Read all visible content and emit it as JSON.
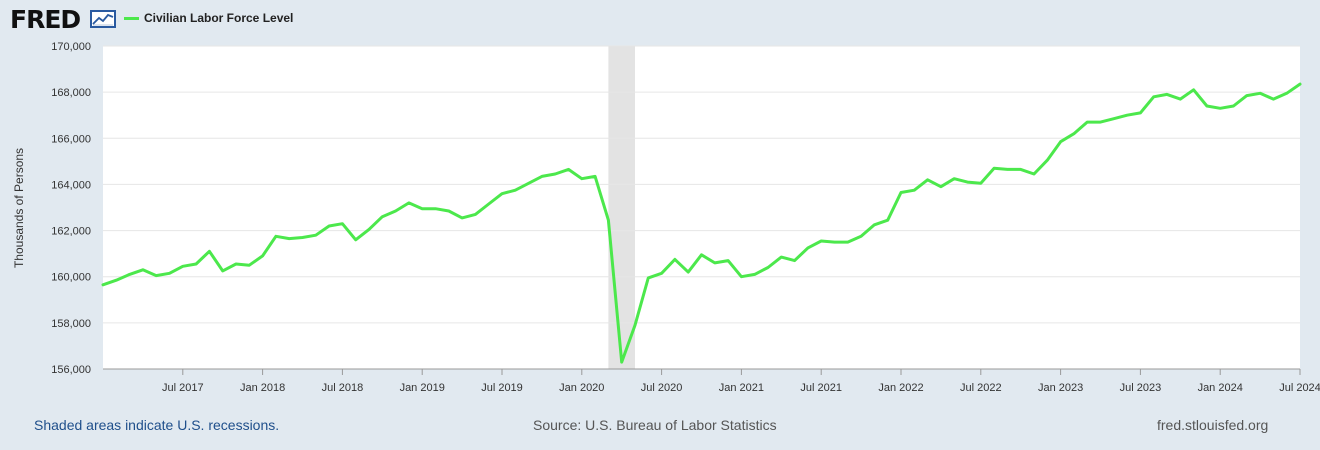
{
  "header": {
    "logo_text": "FRED",
    "logo_icon": "trend-chart-icon",
    "legend_label": "Civilian Labor Force Level",
    "series_color": "#4ce84c"
  },
  "footer": {
    "recession_note": "Shaded areas indicate U.S. recessions.",
    "source": "Source: U.S. Bureau of Labor Statistics",
    "site": "fred.stlouisfed.org"
  },
  "chart_data": {
    "type": "line",
    "title": "",
    "xlabel": "",
    "ylabel": "Thousands of Persons",
    "ylim": [
      156000,
      170000
    ],
    "xlim": [
      "2017-01",
      "2024-07"
    ],
    "y_ticks": [
      156000,
      158000,
      160000,
      162000,
      164000,
      166000,
      168000,
      170000
    ],
    "y_tick_labels": [
      "156,000",
      "158,000",
      "160,000",
      "162,000",
      "164,000",
      "166,000",
      "168,000",
      "170,000"
    ],
    "x_ticks": [
      "2017-07",
      "2018-01",
      "2018-07",
      "2019-01",
      "2019-07",
      "2020-01",
      "2020-07",
      "2021-01",
      "2021-07",
      "2022-01",
      "2022-07",
      "2023-01",
      "2023-07",
      "2024-01",
      "2024-07"
    ],
    "x_tick_labels": [
      "Jul 2017",
      "Jan 2018",
      "Jul 2018",
      "Jan 2019",
      "Jul 2019",
      "Jan 2020",
      "Jul 2020",
      "Jan 2021",
      "Jul 2021",
      "Jan 2022",
      "Jul 2022",
      "Jan 2023",
      "Jul 2023",
      "Jan 2024",
      "Jul 2024"
    ],
    "grid": true,
    "legend": "top-left",
    "recession_shading": [
      [
        "2020-03",
        "2020-05"
      ]
    ],
    "series": [
      {
        "name": "Civilian Labor Force Level",
        "color": "#4ce84c",
        "x": [
          "2017-01",
          "2017-02",
          "2017-03",
          "2017-04",
          "2017-05",
          "2017-06",
          "2017-07",
          "2017-08",
          "2017-09",
          "2017-10",
          "2017-11",
          "2017-12",
          "2018-01",
          "2018-02",
          "2018-03",
          "2018-04",
          "2018-05",
          "2018-06",
          "2018-07",
          "2018-08",
          "2018-09",
          "2018-10",
          "2018-11",
          "2018-12",
          "2019-01",
          "2019-02",
          "2019-03",
          "2019-04",
          "2019-05",
          "2019-06",
          "2019-07",
          "2019-08",
          "2019-09",
          "2019-10",
          "2019-11",
          "2019-12",
          "2020-01",
          "2020-02",
          "2020-03",
          "2020-04",
          "2020-05",
          "2020-06",
          "2020-07",
          "2020-08",
          "2020-09",
          "2020-10",
          "2020-11",
          "2020-12",
          "2021-01",
          "2021-02",
          "2021-03",
          "2021-04",
          "2021-05",
          "2021-06",
          "2021-07",
          "2021-08",
          "2021-09",
          "2021-10",
          "2021-11",
          "2021-12",
          "2022-01",
          "2022-02",
          "2022-03",
          "2022-04",
          "2022-05",
          "2022-06",
          "2022-07",
          "2022-08",
          "2022-09",
          "2022-10",
          "2022-11",
          "2022-12",
          "2023-01",
          "2023-02",
          "2023-03",
          "2023-04",
          "2023-05",
          "2023-06",
          "2023-07",
          "2023-08",
          "2023-09",
          "2023-10",
          "2023-11",
          "2023-12",
          "2024-01",
          "2024-02",
          "2024-03",
          "2024-04",
          "2024-05",
          "2024-06",
          "2024-07"
        ],
        "values": [
          159650,
          159850,
          160100,
          160300,
          160050,
          160150,
          160450,
          160550,
          161100,
          160250,
          160550,
          160500,
          160900,
          161750,
          161650,
          161700,
          161800,
          162200,
          162300,
          161600,
          162050,
          162600,
          162850,
          163200,
          162950,
          162950,
          162850,
          162550,
          162700,
          163150,
          163600,
          163750,
          164050,
          164350,
          164450,
          164650,
          164250,
          164350,
          162450,
          156300,
          157900,
          159950,
          160150,
          160750,
          160200,
          160950,
          160600,
          160700,
          160000,
          160100,
          160400,
          160850,
          160700,
          161250,
          161550,
          161500,
          161500,
          161750,
          162250,
          162450,
          163650,
          163750,
          164200,
          163900,
          164250,
          164100,
          164050,
          164700,
          164650,
          164650,
          164450,
          165050,
          165850,
          166200,
          166700,
          166700,
          166850,
          167000,
          167100,
          167800,
          167900,
          167700,
          168100,
          167400,
          167300,
          167400,
          167850,
          167950,
          167700,
          167950,
          168350
        ]
      }
    ]
  }
}
